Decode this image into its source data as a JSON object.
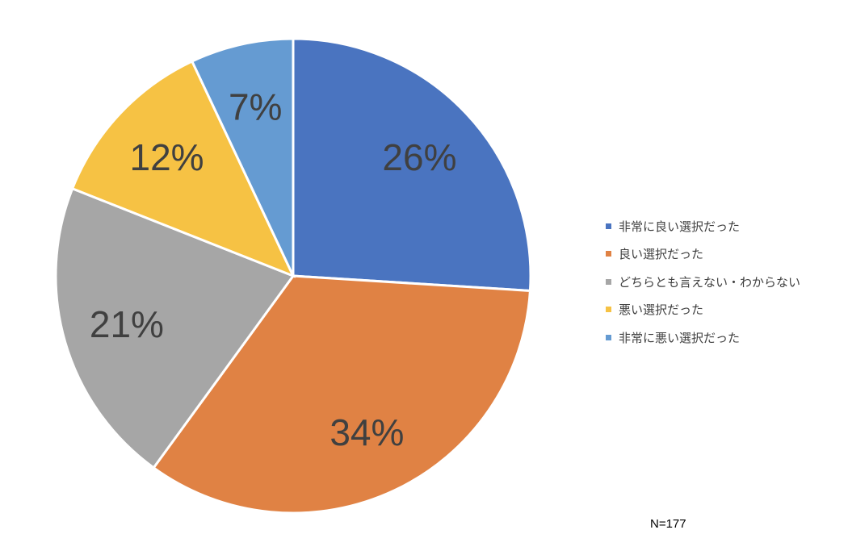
{
  "chart_data": {
    "type": "pie",
    "start_angle": "12 o'clock, clockwise",
    "categories": [
      "非常に良い選択だった",
      "良い選択だった",
      "どちらとも言えない・わからない",
      "悪い選択だった",
      "非常に悪い選択だった"
    ],
    "values": [
      26,
      34,
      21,
      12,
      7
    ],
    "data_labels": [
      "26%",
      "34%",
      "21%",
      "12%",
      "7%"
    ],
    "colors": [
      "#4A74C0",
      "#E08244",
      "#A6A6A6",
      "#F6C244",
      "#659BD2"
    ],
    "legend_position": "right",
    "annotation": "N=177"
  }
}
